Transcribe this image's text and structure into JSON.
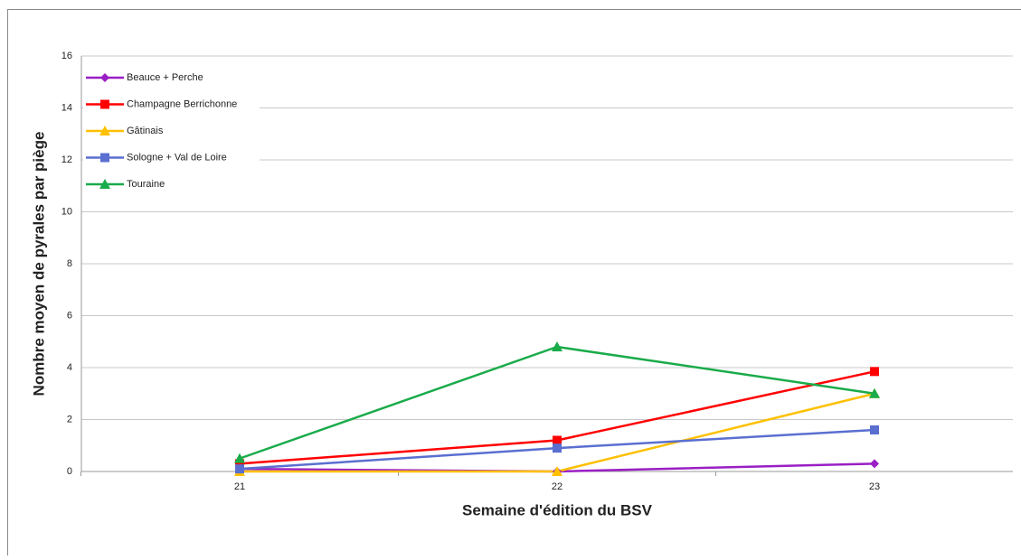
{
  "chart_data": {
    "type": "line",
    "y_label": "Nombre moyen de pyrales par piège",
    "x_label": "Semaine d'édition du BSV",
    "categories": [
      "21",
      "22",
      "23"
    ],
    "ylim": [
      0,
      16
    ],
    "yticks": [
      0,
      2,
      4,
      6,
      8,
      10,
      12,
      14,
      16
    ],
    "grid": true,
    "legend": "upper left",
    "series": [
      {
        "name": "Beauce + Perche",
        "color": "#9a1fc4",
        "marker": "diamond",
        "values": [
          0.1,
          0,
          0.3
        ]
      },
      {
        "name": "Champagne Berrichonne",
        "color": "#ff0000",
        "marker": "square",
        "values": [
          0.3,
          1.2,
          3.85
        ]
      },
      {
        "name": "Gâtinais",
        "color": "#ffc000",
        "marker": "triangle",
        "values": [
          0,
          0,
          3
        ]
      },
      {
        "name": "Sologne + Val de Loire",
        "color": "#5a6fd0",
        "marker": "square",
        "values": [
          0.1,
          0.9,
          1.6
        ]
      },
      {
        "name": "Touraine",
        "color": "#1aab4a",
        "marker": "triangle",
        "values": [
          0.5,
          4.8,
          3
        ]
      }
    ]
  }
}
